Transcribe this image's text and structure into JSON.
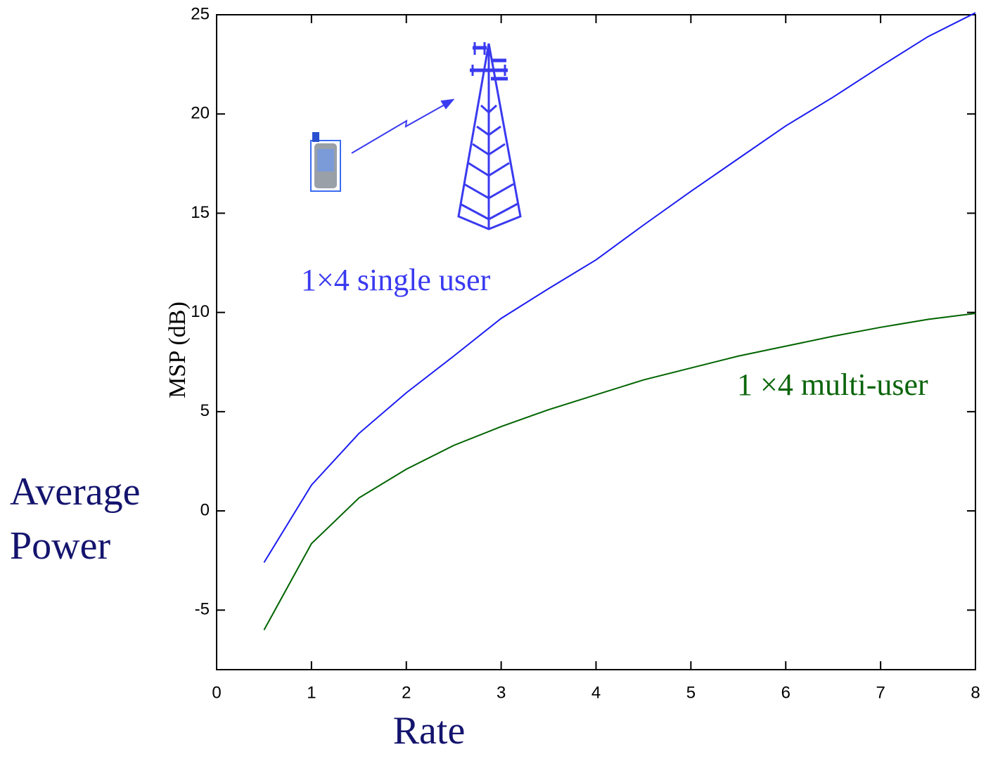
{
  "chart_data": {
    "type": "line",
    "y_label": "MSP (dB)",
    "x_label": "Rate",
    "side_label": [
      "Average",
      "Power"
    ],
    "annotations": [
      "1×4 single user",
      "1 ×4 multi-user"
    ],
    "x": [
      0.5,
      1,
      1.5,
      2,
      2.5,
      3,
      3.5,
      4,
      4.5,
      5,
      5.5,
      6,
      6.5,
      7,
      7.5,
      8
    ],
    "series": [
      {
        "name": "1×4 single user",
        "color": "#1c1cf0",
        "values": [
          -2.6,
          1.3,
          3.9,
          5.95,
          7.8,
          9.7,
          11.2,
          12.65,
          14.4,
          16.1,
          17.75,
          19.4,
          20.85,
          22.4,
          23.9,
          25.1
        ]
      },
      {
        "name": "1 ×4 multi-user",
        "color": "#006400",
        "values": [
          -6,
          -1.65,
          0.65,
          2.1,
          3.3,
          4.25,
          5.1,
          5.85,
          6.6,
          7.2,
          7.8,
          8.3,
          8.8,
          9.25,
          9.65,
          9.95
        ]
      }
    ],
    "xlim": [
      0,
      8
    ],
    "ylim": [
      -8,
      25
    ],
    "xticks": [
      0,
      1,
      2,
      3,
      4,
      5,
      6,
      7,
      8
    ],
    "yticks": [
      -5,
      0,
      5,
      10,
      15,
      20,
      25
    ]
  }
}
